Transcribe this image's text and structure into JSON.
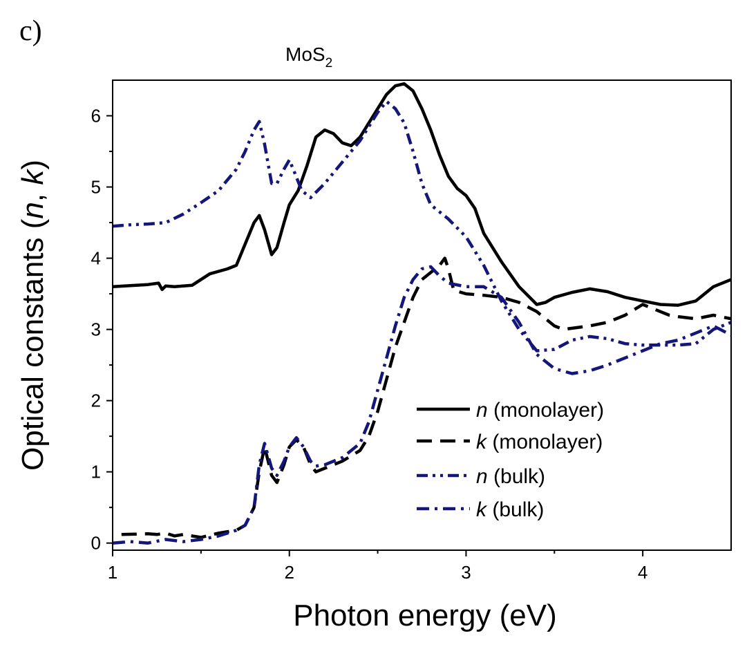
{
  "panel_label": "c)",
  "chart_data": {
    "type": "line",
    "title": "MoS",
    "title_subscript": "2",
    "xlabel": "Photon energy (eV)",
    "ylabel_parts": [
      {
        "text": "Optical constants (",
        "italic": false
      },
      {
        "text": "n",
        "italic": true
      },
      {
        "text": ", ",
        "italic": false
      },
      {
        "text": "k",
        "italic": true
      },
      {
        "text": ")",
        "italic": false
      }
    ],
    "xlim": [
      1,
      4.5
    ],
    "ylim": [
      -0.1,
      6.5
    ],
    "x_ticks": [
      1,
      2,
      3,
      4
    ],
    "y_ticks": [
      0,
      1,
      2,
      3,
      4,
      5,
      6
    ],
    "legend_position": "center-right",
    "series": [
      {
        "name": "n (monolayer)",
        "legend_italic": "n",
        "legend_rest": " (monolayer)",
        "color": "#000000",
        "dash": "solid",
        "points": [
          [
            1.0,
            3.6
          ],
          [
            1.2,
            3.63
          ],
          [
            1.26,
            3.65
          ],
          [
            1.28,
            3.56
          ],
          [
            1.3,
            3.61
          ],
          [
            1.35,
            3.6
          ],
          [
            1.45,
            3.62
          ],
          [
            1.55,
            3.78
          ],
          [
            1.65,
            3.85
          ],
          [
            1.7,
            3.9
          ],
          [
            1.75,
            4.2
          ],
          [
            1.8,
            4.5
          ],
          [
            1.83,
            4.6
          ],
          [
            1.86,
            4.4
          ],
          [
            1.9,
            4.05
          ],
          [
            1.93,
            4.15
          ],
          [
            1.97,
            4.5
          ],
          [
            2.0,
            4.75
          ],
          [
            2.05,
            4.95
          ],
          [
            2.1,
            5.3
          ],
          [
            2.15,
            5.7
          ],
          [
            2.2,
            5.8
          ],
          [
            2.25,
            5.75
          ],
          [
            2.3,
            5.62
          ],
          [
            2.35,
            5.58
          ],
          [
            2.4,
            5.7
          ],
          [
            2.45,
            5.9
          ],
          [
            2.5,
            6.1
          ],
          [
            2.55,
            6.3
          ],
          [
            2.6,
            6.42
          ],
          [
            2.65,
            6.45
          ],
          [
            2.7,
            6.35
          ],
          [
            2.75,
            6.1
          ],
          [
            2.8,
            5.8
          ],
          [
            2.85,
            5.45
          ],
          [
            2.9,
            5.15
          ],
          [
            2.95,
            4.98
          ],
          [
            3.0,
            4.88
          ],
          [
            3.05,
            4.7
          ],
          [
            3.1,
            4.35
          ],
          [
            3.2,
            3.95
          ],
          [
            3.3,
            3.6
          ],
          [
            3.4,
            3.35
          ],
          [
            3.45,
            3.38
          ],
          [
            3.5,
            3.45
          ],
          [
            3.6,
            3.52
          ],
          [
            3.7,
            3.57
          ],
          [
            3.8,
            3.53
          ],
          [
            3.9,
            3.45
          ],
          [
            4.0,
            3.4
          ],
          [
            4.1,
            3.35
          ],
          [
            4.2,
            3.34
          ],
          [
            4.3,
            3.4
          ],
          [
            4.4,
            3.6
          ],
          [
            4.5,
            3.7
          ]
        ]
      },
      {
        "name": "k (monolayer)",
        "legend_italic": "k",
        "legend_rest": " (monolayer)",
        "color": "#000000",
        "dash": "dash",
        "points": [
          [
            1.05,
            0.12
          ],
          [
            1.2,
            0.13
          ],
          [
            1.25,
            0.12
          ],
          [
            1.3,
            0.14
          ],
          [
            1.35,
            0.1
          ],
          [
            1.4,
            0.12
          ],
          [
            1.5,
            0.08
          ],
          [
            1.6,
            0.14
          ],
          [
            1.7,
            0.18
          ],
          [
            1.75,
            0.25
          ],
          [
            1.8,
            0.5
          ],
          [
            1.83,
            1.0
          ],
          [
            1.86,
            1.35
          ],
          [
            1.9,
            0.95
          ],
          [
            1.93,
            0.85
          ],
          [
            1.97,
            1.1
          ],
          [
            2.0,
            1.35
          ],
          [
            2.04,
            1.45
          ],
          [
            2.08,
            1.35
          ],
          [
            2.12,
            1.1
          ],
          [
            2.15,
            1.0
          ],
          [
            2.2,
            1.05
          ],
          [
            2.3,
            1.15
          ],
          [
            2.4,
            1.3
          ],
          [
            2.45,
            1.5
          ],
          [
            2.5,
            1.85
          ],
          [
            2.55,
            2.3
          ],
          [
            2.6,
            2.75
          ],
          [
            2.65,
            3.1
          ],
          [
            2.7,
            3.45
          ],
          [
            2.75,
            3.7
          ],
          [
            2.8,
            3.8
          ],
          [
            2.85,
            3.9
          ],
          [
            2.88,
            4.0
          ],
          [
            2.9,
            3.85
          ],
          [
            2.93,
            3.55
          ],
          [
            3.0,
            3.5
          ],
          [
            3.1,
            3.48
          ],
          [
            3.2,
            3.45
          ],
          [
            3.3,
            3.38
          ],
          [
            3.4,
            3.25
          ],
          [
            3.5,
            3.05
          ],
          [
            3.55,
            3.0
          ],
          [
            3.7,
            3.05
          ],
          [
            3.8,
            3.1
          ],
          [
            3.9,
            3.2
          ],
          [
            4.0,
            3.35
          ],
          [
            4.05,
            3.3
          ],
          [
            4.15,
            3.2
          ],
          [
            4.2,
            3.18
          ],
          [
            4.3,
            3.15
          ],
          [
            4.4,
            3.2
          ],
          [
            4.5,
            3.15
          ]
        ]
      },
      {
        "name": "n (bulk)",
        "legend_italic": "n",
        "legend_rest": " (bulk)",
        "color": "#14167a",
        "dash": "dashdotdot",
        "points": [
          [
            1.0,
            4.45
          ],
          [
            1.1,
            4.47
          ],
          [
            1.2,
            4.48
          ],
          [
            1.3,
            4.5
          ],
          [
            1.4,
            4.62
          ],
          [
            1.5,
            4.78
          ],
          [
            1.6,
            4.95
          ],
          [
            1.7,
            5.25
          ],
          [
            1.75,
            5.5
          ],
          [
            1.8,
            5.8
          ],
          [
            1.83,
            5.92
          ],
          [
            1.86,
            5.6
          ],
          [
            1.9,
            5.05
          ],
          [
            1.93,
            5.05
          ],
          [
            1.97,
            5.25
          ],
          [
            2.0,
            5.38
          ],
          [
            2.03,
            5.2
          ],
          [
            2.07,
            4.95
          ],
          [
            2.12,
            4.85
          ],
          [
            2.2,
            5.05
          ],
          [
            2.3,
            5.35
          ],
          [
            2.4,
            5.65
          ],
          [
            2.5,
            6.05
          ],
          [
            2.55,
            6.2
          ],
          [
            2.6,
            6.1
          ],
          [
            2.65,
            5.9
          ],
          [
            2.7,
            5.5
          ],
          [
            2.75,
            5.05
          ],
          [
            2.8,
            4.75
          ],
          [
            2.9,
            4.55
          ],
          [
            3.0,
            4.3
          ],
          [
            3.1,
            3.9
          ],
          [
            3.2,
            3.4
          ],
          [
            3.3,
            3.0
          ],
          [
            3.4,
            2.7
          ],
          [
            3.5,
            2.72
          ],
          [
            3.6,
            2.85
          ],
          [
            3.7,
            2.9
          ],
          [
            3.8,
            2.87
          ],
          [
            3.9,
            2.8
          ],
          [
            4.0,
            2.78
          ],
          [
            4.2,
            2.78
          ],
          [
            4.3,
            2.8
          ],
          [
            4.4,
            3.0
          ],
          [
            4.5,
            3.1
          ]
        ]
      },
      {
        "name": "k (bulk)",
        "legend_italic": "k",
        "legend_rest": " (bulk)",
        "color": "#14167a",
        "dash": "dashdot",
        "points": [
          [
            1.0,
            0.0
          ],
          [
            1.1,
            0.02
          ],
          [
            1.2,
            0.0
          ],
          [
            1.3,
            0.05
          ],
          [
            1.4,
            0.02
          ],
          [
            1.5,
            0.05
          ],
          [
            1.6,
            0.1
          ],
          [
            1.7,
            0.18
          ],
          [
            1.75,
            0.25
          ],
          [
            1.8,
            0.5
          ],
          [
            1.83,
            1.1
          ],
          [
            1.86,
            1.4
          ],
          [
            1.9,
            1.05
          ],
          [
            1.93,
            0.95
          ],
          [
            1.97,
            1.15
          ],
          [
            2.0,
            1.35
          ],
          [
            2.04,
            1.48
          ],
          [
            2.08,
            1.35
          ],
          [
            2.12,
            1.15
          ],
          [
            2.15,
            1.08
          ],
          [
            2.2,
            1.1
          ],
          [
            2.3,
            1.2
          ],
          [
            2.4,
            1.4
          ],
          [
            2.45,
            1.7
          ],
          [
            2.5,
            2.15
          ],
          [
            2.55,
            2.6
          ],
          [
            2.6,
            3.05
          ],
          [
            2.65,
            3.45
          ],
          [
            2.7,
            3.7
          ],
          [
            2.75,
            3.85
          ],
          [
            2.8,
            3.88
          ],
          [
            2.85,
            3.75
          ],
          [
            2.9,
            3.65
          ],
          [
            3.0,
            3.6
          ],
          [
            3.1,
            3.6
          ],
          [
            3.2,
            3.45
          ],
          [
            3.3,
            3.1
          ],
          [
            3.4,
            2.65
          ],
          [
            3.5,
            2.45
          ],
          [
            3.6,
            2.38
          ],
          [
            3.7,
            2.42
          ],
          [
            3.8,
            2.5
          ],
          [
            3.9,
            2.6
          ],
          [
            4.0,
            2.7
          ],
          [
            4.1,
            2.8
          ],
          [
            4.2,
            2.85
          ],
          [
            4.3,
            2.95
          ],
          [
            4.4,
            3.05
          ],
          [
            4.5,
            2.92
          ]
        ]
      }
    ]
  }
}
